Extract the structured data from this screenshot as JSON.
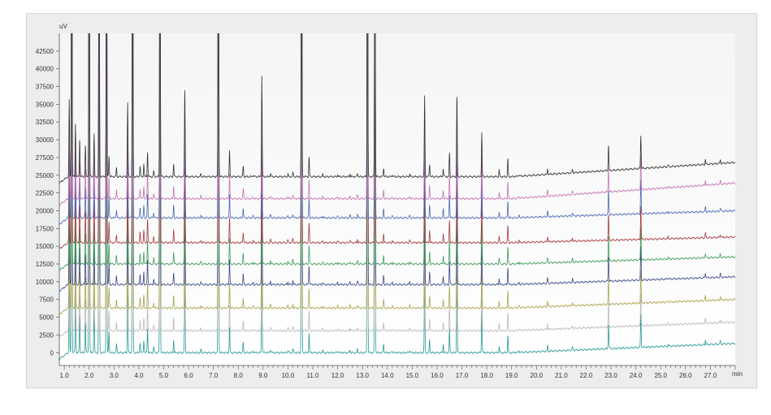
{
  "chart_data": {
    "type": "line",
    "title": "",
    "ylabel": "uV",
    "xlabel": "min",
    "xlim": [
      0.8,
      28.0
    ],
    "ylim": [
      -1800,
      45000
    ],
    "grid": false,
    "legend": "none",
    "yticks": [
      0,
      2500,
      5000,
      7500,
      10000,
      12500,
      15000,
      17500,
      20000,
      22500,
      25000,
      27500,
      30000,
      32500,
      35000,
      37500,
      40000,
      42500
    ],
    "xticks": [
      1.0,
      2.0,
      3.0,
      4.0,
      5.0,
      6.0,
      7.0,
      8.0,
      9.0,
      10.0,
      11.0,
      12.0,
      13.0,
      14.0,
      15.0,
      16.0,
      17.0,
      18.0,
      19.0,
      20.0,
      21.0,
      22.0,
      23.0,
      24.0,
      25.0,
      26.0,
      27.0
    ],
    "xtick_labels": [
      "1.0",
      "2.0",
      "3.0",
      "4.0",
      "5.0",
      "6.0",
      "7.0",
      "8.0",
      "9.0",
      "10.0",
      "11.0",
      "12.0",
      "13.0",
      "14.0",
      "15.0",
      "16.0",
      "17.0",
      "18.0",
      "19.0",
      "20.0",
      "21.0",
      "22.0",
      "23.0",
      "24.0",
      "25.0",
      "26.0",
      "27.0"
    ],
    "peaks": [
      {
        "t": 1.2,
        "h": 11000
      },
      {
        "t": 1.3,
        "h": 60000
      },
      {
        "t": 1.45,
        "h": 7500
      },
      {
        "t": 1.62,
        "h": 5500
      },
      {
        "t": 1.85,
        "h": 4500
      },
      {
        "t": 2.0,
        "h": 60000
      },
      {
        "t": 2.2,
        "h": 6000
      },
      {
        "t": 2.4,
        "h": 60000
      },
      {
        "t": 2.7,
        "h": 60000
      },
      {
        "t": 2.8,
        "h": 3000
      },
      {
        "t": 3.1,
        "h": 1200
      },
      {
        "t": 3.55,
        "h": 10500
      },
      {
        "t": 3.75,
        "h": 60000
      },
      {
        "t": 4.05,
        "h": 1500
      },
      {
        "t": 4.2,
        "h": 1800
      },
      {
        "t": 4.35,
        "h": 3500
      },
      {
        "t": 4.6,
        "h": 800
      },
      {
        "t": 4.85,
        "h": 60000
      },
      {
        "t": 5.4,
        "h": 1800
      },
      {
        "t": 5.85,
        "h": 12500
      },
      {
        "t": 6.5,
        "h": 400
      },
      {
        "t": 7.2,
        "h": 60000
      },
      {
        "t": 7.65,
        "h": 3600
      },
      {
        "t": 8.2,
        "h": 1500
      },
      {
        "t": 8.6,
        "h": 300
      },
      {
        "t": 8.95,
        "h": 14300
      },
      {
        "t": 9.3,
        "h": 500
      },
      {
        "t": 10.0,
        "h": 400
      },
      {
        "t": 10.2,
        "h": 600
      },
      {
        "t": 10.55,
        "h": 60000
      },
      {
        "t": 10.85,
        "h": 2800
      },
      {
        "t": 11.4,
        "h": 300
      },
      {
        "t": 12.0,
        "h": 300
      },
      {
        "t": 12.5,
        "h": 400
      },
      {
        "t": 12.8,
        "h": 500
      },
      {
        "t": 13.2,
        "h": 60000
      },
      {
        "t": 13.5,
        "h": 60000
      },
      {
        "t": 13.85,
        "h": 1300
      },
      {
        "t": 14.2,
        "h": 300
      },
      {
        "t": 14.9,
        "h": 400
      },
      {
        "t": 15.5,
        "h": 11500
      },
      {
        "t": 15.7,
        "h": 1800
      },
      {
        "t": 16.25,
        "h": 1200
      },
      {
        "t": 16.5,
        "h": 3300
      },
      {
        "t": 16.8,
        "h": 11800
      },
      {
        "t": 17.8,
        "h": 6200
      },
      {
        "t": 18.5,
        "h": 900
      },
      {
        "t": 18.85,
        "h": 2500
      },
      {
        "t": 19.3,
        "h": 300
      },
      {
        "t": 20.45,
        "h": 800
      },
      {
        "t": 21.45,
        "h": 500
      },
      {
        "t": 22.9,
        "h": 3700
      },
      {
        "t": 24.2,
        "h": 4800
      },
      {
        "t": 25.3,
        "h": 250
      },
      {
        "t": 26.8,
        "h": 700
      },
      {
        "t": 27.4,
        "h": 500
      }
    ],
    "series": [
      {
        "color": "#2a9a96",
        "baseline": 0,
        "drift": 1300,
        "scale": 1.0
      },
      {
        "color": "#b8b8b8",
        "baseline": 3100,
        "drift": 1200,
        "scale": 0.98
      },
      {
        "color": "#aaa44c",
        "baseline": 6300,
        "drift": 1200,
        "scale": 0.97
      },
      {
        "color": "#3c4a8c",
        "baseline": 9600,
        "drift": 1100,
        "scale": 0.99
      },
      {
        "color": "#3e9c58",
        "baseline": 12500,
        "drift": 1000,
        "scale": 0.98
      },
      {
        "color": "#a8383c",
        "baseline": 15500,
        "drift": 800,
        "scale": 0.99
      },
      {
        "color": "#4a68b4",
        "baseline": 19000,
        "drift": 1000,
        "scale": 0.98
      },
      {
        "color": "#c872b4",
        "baseline": 21700,
        "drift": 2200,
        "scale": 0.99
      },
      {
        "color": "#333333",
        "baseline": 24800,
        "drift": 2000,
        "scale": 1.0
      }
    ]
  }
}
